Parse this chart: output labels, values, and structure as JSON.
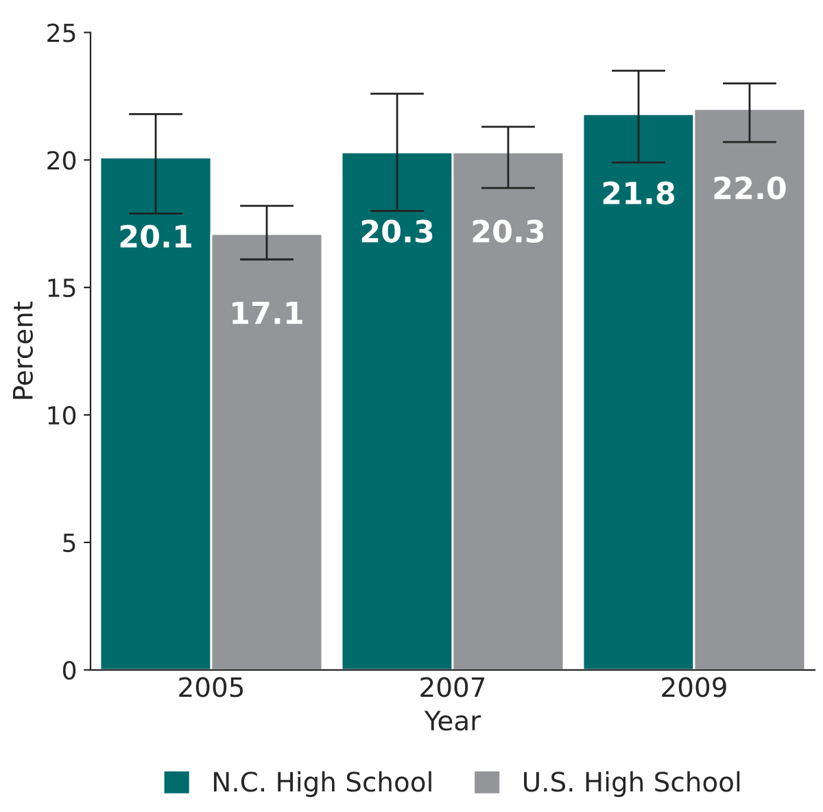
{
  "chart_data": {
    "type": "bar",
    "xlabel": "Year",
    "ylabel": "Percent",
    "categories": [
      "2005",
      "2007",
      "2009"
    ],
    "series": [
      {
        "name": "N.C. High School",
        "color": "#006b6b",
        "values": [
          20.1,
          20.3,
          21.8
        ],
        "value_labels": [
          "20.1",
          "20.3",
          "21.8"
        ],
        "errors": [
          [
            17.9,
            21.8
          ],
          [
            18.0,
            22.6
          ],
          [
            19.9,
            23.5
          ]
        ]
      },
      {
        "name": "U.S. High School",
        "color": "#939598",
        "values": [
          17.1,
          20.3,
          22.0
        ],
        "value_labels": [
          "17.1",
          "20.3",
          "22.0"
        ],
        "errors": [
          [
            16.1,
            18.2
          ],
          [
            18.9,
            21.3
          ],
          [
            20.7,
            23.0
          ]
        ]
      }
    ],
    "ylim": [
      0,
      25
    ],
    "yticks": [
      0,
      5,
      10,
      15,
      20,
      25
    ],
    "legend": "bottom",
    "grid": false
  }
}
